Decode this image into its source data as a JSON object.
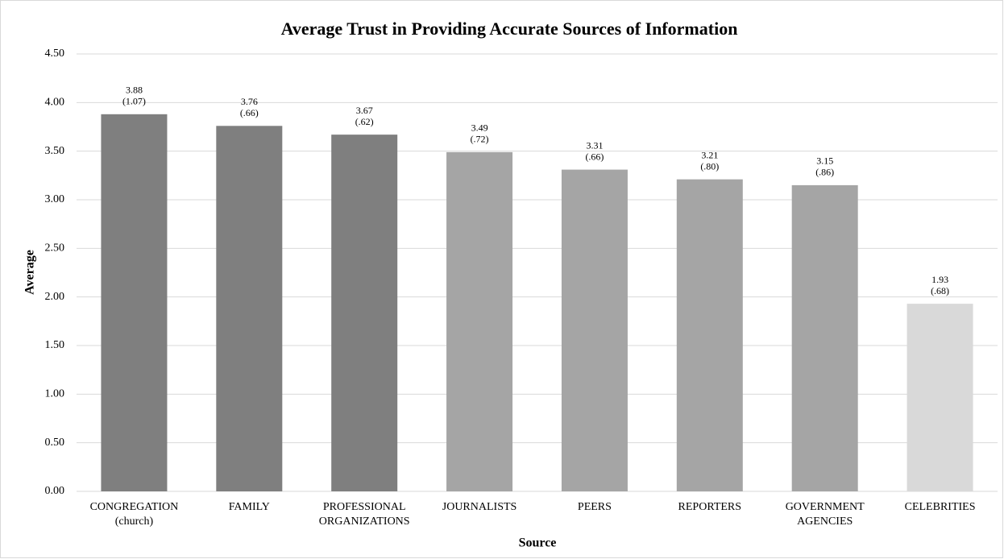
{
  "chart_data": {
    "type": "bar",
    "title": "Average Trust in Providing Accurate Sources of Information",
    "xlabel": "Source",
    "ylabel": "Average",
    "categories": [
      [
        "CONGREGATION",
        "(church)"
      ],
      [
        "FAMILY"
      ],
      [
        "PROFESSIONAL",
        "ORGANIZATIONS"
      ],
      [
        "JOURNALISTS"
      ],
      [
        "PEERS"
      ],
      [
        "REPORTERS"
      ],
      [
        "GOVERNMENT",
        "AGENCIES"
      ],
      [
        "CELEBRITIES"
      ]
    ],
    "values": [
      3.88,
      3.76,
      3.67,
      3.49,
      3.31,
      3.21,
      3.15,
      1.93
    ],
    "sd_labels": [
      "(1.07)",
      "(.66)",
      "(.62)",
      "(.72)",
      "(.66)",
      "(.80)",
      "(.86)",
      "(.68)"
    ],
    "colors": [
      "#7f7f7f",
      "#7f7f7f",
      "#7f7f7f",
      "#a5a5a5",
      "#a5a5a5",
      "#a5a5a5",
      "#a5a5a5",
      "#d9d9d9"
    ],
    "ylim": [
      0,
      4.5
    ],
    "yticks": [
      {
        "value": 0,
        "label": "0.00"
      },
      {
        "value": 0.5,
        "label": "0.50"
      },
      {
        "value": 1,
        "label": "1.00"
      },
      {
        "value": 1.5,
        "label": "1.50"
      },
      {
        "value": 2,
        "label": "2.00"
      },
      {
        "value": 2.5,
        "label": "2.50"
      },
      {
        "value": 3,
        "label": "3.00"
      },
      {
        "value": 3.5,
        "label": "3.50"
      },
      {
        "value": 4,
        "label": "4.00"
      },
      {
        "value": 4.5,
        "label": "4.50"
      }
    ],
    "grid": true
  }
}
